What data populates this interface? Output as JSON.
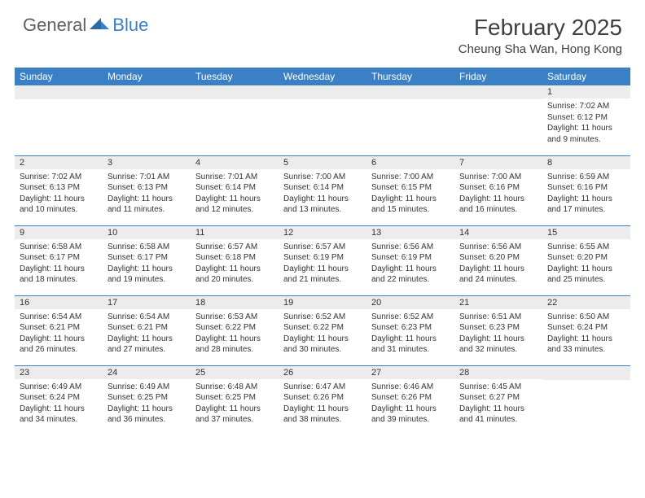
{
  "logo": {
    "general": "General",
    "blue": "Blue"
  },
  "title": "February 2025",
  "location": "Cheung Sha Wan, Hong Kong",
  "colors": {
    "header_bg": "#3b7fc4",
    "header_text": "#ffffff",
    "num_row_bg": "#ececec",
    "border": "#3b7fc4",
    "body_text": "#333333"
  },
  "day_headers": [
    "Sunday",
    "Monday",
    "Tuesday",
    "Wednesday",
    "Thursday",
    "Friday",
    "Saturday"
  ],
  "weeks": [
    [
      null,
      null,
      null,
      null,
      null,
      null,
      {
        "n": "1",
        "sr": "7:02 AM",
        "ss": "6:12 PM",
        "dl": "11 hours and 9 minutes."
      }
    ],
    [
      {
        "n": "2",
        "sr": "7:02 AM",
        "ss": "6:13 PM",
        "dl": "11 hours and 10 minutes."
      },
      {
        "n": "3",
        "sr": "7:01 AM",
        "ss": "6:13 PM",
        "dl": "11 hours and 11 minutes."
      },
      {
        "n": "4",
        "sr": "7:01 AM",
        "ss": "6:14 PM",
        "dl": "11 hours and 12 minutes."
      },
      {
        "n": "5",
        "sr": "7:00 AM",
        "ss": "6:14 PM",
        "dl": "11 hours and 13 minutes."
      },
      {
        "n": "6",
        "sr": "7:00 AM",
        "ss": "6:15 PM",
        "dl": "11 hours and 15 minutes."
      },
      {
        "n": "7",
        "sr": "7:00 AM",
        "ss": "6:16 PM",
        "dl": "11 hours and 16 minutes."
      },
      {
        "n": "8",
        "sr": "6:59 AM",
        "ss": "6:16 PM",
        "dl": "11 hours and 17 minutes."
      }
    ],
    [
      {
        "n": "9",
        "sr": "6:58 AM",
        "ss": "6:17 PM",
        "dl": "11 hours and 18 minutes."
      },
      {
        "n": "10",
        "sr": "6:58 AM",
        "ss": "6:17 PM",
        "dl": "11 hours and 19 minutes."
      },
      {
        "n": "11",
        "sr": "6:57 AM",
        "ss": "6:18 PM",
        "dl": "11 hours and 20 minutes."
      },
      {
        "n": "12",
        "sr": "6:57 AM",
        "ss": "6:19 PM",
        "dl": "11 hours and 21 minutes."
      },
      {
        "n": "13",
        "sr": "6:56 AM",
        "ss": "6:19 PM",
        "dl": "11 hours and 22 minutes."
      },
      {
        "n": "14",
        "sr": "6:56 AM",
        "ss": "6:20 PM",
        "dl": "11 hours and 24 minutes."
      },
      {
        "n": "15",
        "sr": "6:55 AM",
        "ss": "6:20 PM",
        "dl": "11 hours and 25 minutes."
      }
    ],
    [
      {
        "n": "16",
        "sr": "6:54 AM",
        "ss": "6:21 PM",
        "dl": "11 hours and 26 minutes."
      },
      {
        "n": "17",
        "sr": "6:54 AM",
        "ss": "6:21 PM",
        "dl": "11 hours and 27 minutes."
      },
      {
        "n": "18",
        "sr": "6:53 AM",
        "ss": "6:22 PM",
        "dl": "11 hours and 28 minutes."
      },
      {
        "n": "19",
        "sr": "6:52 AM",
        "ss": "6:22 PM",
        "dl": "11 hours and 30 minutes."
      },
      {
        "n": "20",
        "sr": "6:52 AM",
        "ss": "6:23 PM",
        "dl": "11 hours and 31 minutes."
      },
      {
        "n": "21",
        "sr": "6:51 AM",
        "ss": "6:23 PM",
        "dl": "11 hours and 32 minutes."
      },
      {
        "n": "22",
        "sr": "6:50 AM",
        "ss": "6:24 PM",
        "dl": "11 hours and 33 minutes."
      }
    ],
    [
      {
        "n": "23",
        "sr": "6:49 AM",
        "ss": "6:24 PM",
        "dl": "11 hours and 34 minutes."
      },
      {
        "n": "24",
        "sr": "6:49 AM",
        "ss": "6:25 PM",
        "dl": "11 hours and 36 minutes."
      },
      {
        "n": "25",
        "sr": "6:48 AM",
        "ss": "6:25 PM",
        "dl": "11 hours and 37 minutes."
      },
      {
        "n": "26",
        "sr": "6:47 AM",
        "ss": "6:26 PM",
        "dl": "11 hours and 38 minutes."
      },
      {
        "n": "27",
        "sr": "6:46 AM",
        "ss": "6:26 PM",
        "dl": "11 hours and 39 minutes."
      },
      {
        "n": "28",
        "sr": "6:45 AM",
        "ss": "6:27 PM",
        "dl": "11 hours and 41 minutes."
      },
      null
    ]
  ],
  "labels": {
    "sunrise": "Sunrise:",
    "sunset": "Sunset:",
    "daylight": "Daylight:"
  }
}
